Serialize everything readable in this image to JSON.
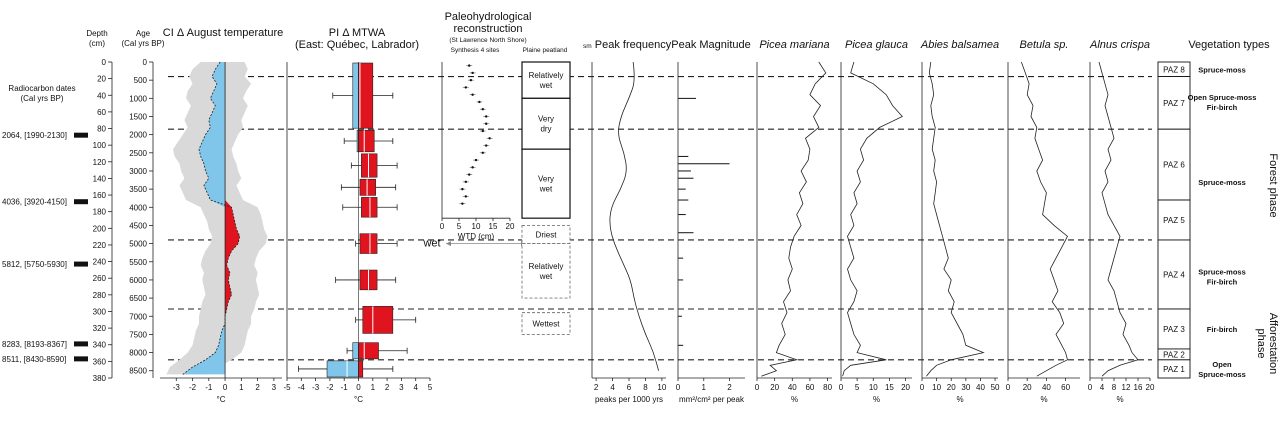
{
  "chart_data": {
    "type": "line",
    "depth_axis": {
      "label": "Depth",
      "unit": "(cm)",
      "ticks": [
        0,
        20,
        40,
        60,
        80,
        100,
        120,
        140,
        160,
        180,
        200,
        220,
        240,
        260,
        280,
        300,
        320,
        340,
        360,
        380
      ]
    },
    "age_axis": {
      "label": "Age",
      "unit": "(Cal yrs BP)",
      "ticks": [
        0,
        500,
        1000,
        1500,
        2000,
        2500,
        3000,
        3500,
        4000,
        4500,
        5000,
        5500,
        6000,
        6500,
        7000,
        7500,
        8000,
        8500
      ]
    },
    "radiocarbon": {
      "title_line1": "Radiocarbon dates",
      "title_line2": "(Cal yrs BP)",
      "dates": [
        {
          "label": "2064, [1990-2130]",
          "depth": 88
        },
        {
          "label": "4036, [3920-4150]",
          "depth": 168
        },
        {
          "label": "5812, [5750-5930]",
          "depth": 243
        },
        {
          "label": "8283, [8193-8367]",
          "depth": 339
        },
        {
          "label": "8511, [8430-8590]",
          "depth": 357
        }
      ]
    },
    "zone_boundaries_age": [
      400,
      1850,
      4900,
      6800,
      8200
    ],
    "ci_temperature": {
      "title": "CI Δ August temperature",
      "xlabel": "°C",
      "xlim": [
        -4,
        3.5
      ],
      "xticks": [
        "-3",
        "-2",
        "-1",
        "0",
        "1",
        "2",
        "3"
      ],
      "age": [
        0,
        200,
        400,
        600,
        800,
        1000,
        1200,
        1400,
        1600,
        1800,
        2000,
        2200,
        2400,
        2600,
        2800,
        3000,
        3200,
        3400,
        3600,
        3800,
        4000,
        4200,
        4400,
        4600,
        4800,
        5000,
        5200,
        5400,
        5600,
        5800,
        6000,
        6200,
        6400,
        6600,
        6800,
        7000,
        7200,
        7400,
        7600,
        7800,
        8000,
        8200,
        8400,
        8600
      ],
      "anomaly": [
        -0.3,
        -0.6,
        -0.8,
        -0.5,
        -0.7,
        -0.9,
        -0.6,
        -0.8,
        -1.0,
        -0.9,
        -1.2,
        -1.4,
        -1.6,
        -1.5,
        -1.3,
        -1.2,
        -1.0,
        -1.3,
        -1.1,
        -0.9,
        0.4,
        0.5,
        0.6,
        0.7,
        0.9,
        0.8,
        0.4,
        0.2,
        0.1,
        0.3,
        0.2,
        0.3,
        0.4,
        0.2,
        0.1,
        0.0,
        0.0,
        -0.2,
        -0.3,
        -0.4,
        -0.6,
        -1.2,
        -2.0,
        -2.6
      ],
      "band_low": [
        -1.5,
        -2.0,
        -2.2,
        -2.0,
        -2.3,
        -2.4,
        -2.1,
        -2.3,
        -2.5,
        -2.3,
        -2.6,
        -2.9,
        -3.2,
        -3.1,
        -2.8,
        -2.7,
        -2.5,
        -2.8,
        -2.6,
        -2.4,
        -1.5,
        -1.3,
        -1.1,
        -1.0,
        -0.8,
        -0.9,
        -1.2,
        -1.4,
        -1.5,
        -1.3,
        -1.4,
        -1.3,
        -1.2,
        -1.4,
        -1.5,
        -1.6,
        -1.6,
        -1.8,
        -1.9,
        -2.0,
        -2.3,
        -2.8,
        -3.4,
        -3.6
      ],
      "band_high": [
        1.2,
        1.4,
        1.2,
        1.6,
        1.3,
        1.1,
        1.4,
        1.2,
        1.0,
        1.1,
        0.8,
        0.6,
        0.4,
        0.5,
        0.7,
        0.8,
        1.0,
        0.7,
        0.9,
        1.1,
        2.0,
        2.2,
        2.3,
        2.4,
        2.6,
        2.5,
        2.1,
        1.9,
        1.8,
        2.0,
        1.9,
        2.0,
        2.1,
        1.9,
        1.8,
        1.6,
        1.6,
        1.4,
        1.3,
        1.2,
        1.0,
        0.4,
        -0.4,
        -1.0
      ]
    },
    "pi_mtwa": {
      "title_line1": "PI Δ MTWA",
      "title_line2": "(East: Québec, Labrador)",
      "xlabel": "°C",
      "xlim": [
        -5,
        5
      ],
      "xticks": [
        "-5",
        "-4",
        "-3",
        "-2",
        "-1",
        "0",
        "1",
        "2",
        "3",
        "4",
        "5"
      ],
      "boxes": [
        {
          "age_top": 0,
          "age_bottom": 1850,
          "whisker_low": -1.8,
          "q1": -0.4,
          "median": 0.1,
          "q3": 1.0,
          "whisker_high": 2.4
        },
        {
          "age_top": 1850,
          "age_bottom": 2500,
          "whisker_low": -1.0,
          "q1": -0.1,
          "median": 0.4,
          "q3": 1.1,
          "whisker_high": 2.4
        },
        {
          "age_top": 2500,
          "age_bottom": 3200,
          "whisker_low": -0.5,
          "q1": 0.2,
          "median": 0.7,
          "q3": 1.3,
          "whisker_high": 2.7
        },
        {
          "age_top": 3200,
          "age_bottom": 3700,
          "whisker_low": -1.2,
          "q1": 0.1,
          "median": 0.6,
          "q3": 1.2,
          "whisker_high": 2.6
        },
        {
          "age_top": 3700,
          "age_bottom": 4300,
          "whisker_low": -1.1,
          "q1": 0.2,
          "median": 0.8,
          "q3": 1.3,
          "whisker_high": 2.7
        },
        {
          "age_top": 4700,
          "age_bottom": 5300,
          "whisker_low": -0.2,
          "q1": 0.1,
          "median": 0.8,
          "q3": 1.3,
          "whisker_high": 2.7
        },
        {
          "age_top": 5700,
          "age_bottom": 6300,
          "whisker_low": -1.6,
          "q1": 0.1,
          "median": 0.7,
          "q3": 1.3,
          "whisker_high": 2.6
        },
        {
          "age_top": 6700,
          "age_bottom": 7500,
          "whisker_low": -0.2,
          "q1": 0.3,
          "median": 1.0,
          "q3": 2.4,
          "whisker_high": 4.0
        },
        {
          "age_top": 7700,
          "age_bottom": 8200,
          "whisker_low": -0.8,
          "q1": -0.4,
          "median": 0.4,
          "q3": 1.4,
          "whisker_high": 3.4
        },
        {
          "age_top": 8200,
          "age_bottom": 8700,
          "whisker_low": -4.2,
          "q1": -2.2,
          "median": -0.8,
          "q3": 0.3,
          "whisker_high": 2.4
        }
      ]
    },
    "paleohydro": {
      "title_line1": "Paleohydrological",
      "title_line2": "reconstruction",
      "subtitle": "(St Lawrence North Shore)",
      "col1_title": "Synthesis 4 sites",
      "col2_title": "Plaine peatland",
      "xlabel": "WTD (cm)",
      "xlim": [
        0,
        20
      ],
      "xticks": [
        "0",
        "5",
        "10",
        "15",
        "20"
      ],
      "wet_label": "wet",
      "dry_label": "dry",
      "synthesis": [
        {
          "age": 100,
          "wtd": 8
        },
        {
          "age": 300,
          "wtd": 9
        },
        {
          "age": 500,
          "wtd": 8.5
        },
        {
          "age": 700,
          "wtd": 7
        },
        {
          "age": 900,
          "wtd": 9
        },
        {
          "age": 1100,
          "wtd": 11
        },
        {
          "age": 1300,
          "wtd": 12
        },
        {
          "age": 1500,
          "wtd": 13
        },
        {
          "age": 1700,
          "wtd": 13
        },
        {
          "age": 1900,
          "wtd": 12
        },
        {
          "age": 2100,
          "wtd": 14
        },
        {
          "age": 2300,
          "wtd": 13
        },
        {
          "age": 2500,
          "wtd": 12
        },
        {
          "age": 2700,
          "wtd": 10
        },
        {
          "age": 2900,
          "wtd": 9
        },
        {
          "age": 3100,
          "wtd": 8
        },
        {
          "age": 3300,
          "wtd": 7
        },
        {
          "age": 3500,
          "wtd": 6
        },
        {
          "age": 3700,
          "wtd": 7
        },
        {
          "age": 3900,
          "wtd": 6
        }
      ],
      "phases": [
        {
          "label": "Relatively wet",
          "age_top": 0,
          "age_bottom": 1000,
          "style": "solid"
        },
        {
          "label": "Very dry",
          "age_top": 1000,
          "age_bottom": 2400,
          "style": "solid"
        },
        {
          "label": "Very wet",
          "age_top": 2400,
          "age_bottom": 4300,
          "style": "solid"
        },
        {
          "label": "Driest",
          "age_top": 4500,
          "age_bottom": 5000,
          "style": "dashed"
        },
        {
          "label": "Relatively wet",
          "age_top": 5000,
          "age_bottom": 6500,
          "style": "dashed"
        },
        {
          "label": "Wettest",
          "age_top": 6900,
          "age_bottom": 7500,
          "style": "dashed"
        }
      ]
    },
    "peak_frequency": {
      "title": "Peak frequency",
      "prefix": "sm",
      "xlabel": "peaks per 1000 yrs",
      "xlim": [
        1.5,
        10.5
      ],
      "xticks": [
        "2",
        "4",
        "6",
        "8",
        "10"
      ],
      "age": [
        0,
        500,
        1000,
        1500,
        2000,
        2500,
        3000,
        3500,
        4000,
        4500,
        5000,
        5500,
        6000,
        6500,
        7000,
        7500,
        8000,
        8500
      ],
      "values": [
        6.5,
        6.8,
        6.0,
        5.0,
        4.6,
        5.4,
        5.8,
        5.0,
        3.8,
        3.6,
        4.2,
        5.2,
        6.2,
        6.6,
        7.2,
        8.0,
        9.0,
        9.6
      ]
    },
    "peak_magnitude": {
      "title": "Peak Magnitude",
      "xlabel": "mm²/cm² per peak",
      "xlim": [
        0,
        2.6
      ],
      "xticks": [
        "0",
        "1",
        "2"
      ],
      "peaks": [
        {
          "age": 1000,
          "value": 0.7
        },
        {
          "age": 2600,
          "value": 0.4
        },
        {
          "age": 2800,
          "value": 2.0
        },
        {
          "age": 3000,
          "value": 0.5
        },
        {
          "age": 3200,
          "value": 0.6
        },
        {
          "age": 3500,
          "value": 0.3
        },
        {
          "age": 3800,
          "value": 0.4
        },
        {
          "age": 4200,
          "value": 0.3
        },
        {
          "age": 4700,
          "value": 0.6
        },
        {
          "age": 5400,
          "value": 0.2
        },
        {
          "age": 6000,
          "value": 0.2
        },
        {
          "age": 7000,
          "value": 0.15
        },
        {
          "age": 7800,
          "value": 0.2
        }
      ]
    },
    "pollen": [
      {
        "name": "Picea mariana",
        "xlabel": "%",
        "xlim": [
          0,
          85
        ],
        "xticks": [
          "0",
          "20",
          "40",
          "60",
          "80"
        ],
        "age": [
          0,
          300,
          600,
          900,
          1200,
          1500,
          1800,
          2100,
          2400,
          2700,
          3000,
          3300,
          3600,
          3900,
          4200,
          4500,
          4800,
          5100,
          5400,
          5700,
          6000,
          6300,
          6600,
          6900,
          7200,
          7500,
          7800,
          8000,
          8200,
          8350,
          8500,
          8650
        ],
        "values": [
          70,
          78,
          66,
          60,
          72,
          64,
          70,
          55,
          60,
          58,
          50,
          56,
          48,
          52,
          45,
          50,
          42,
          38,
          36,
          40,
          35,
          38,
          30,
          34,
          28,
          32,
          25,
          22,
          45,
          15,
          22,
          5
        ]
      },
      {
        "name": "Picea glauca",
        "xlabel": "%",
        "xlim": [
          0,
          22
        ],
        "xticks": [
          "0",
          "5",
          "10",
          "15",
          "20"
        ],
        "age": [
          0,
          300,
          600,
          900,
          1200,
          1500,
          1800,
          2100,
          2400,
          2700,
          3000,
          3300,
          3600,
          3900,
          4200,
          4500,
          4800,
          5100,
          5400,
          5700,
          6000,
          6300,
          6600,
          6900,
          7200,
          7500,
          7800,
          8000,
          8200,
          8350,
          8500,
          8650
        ],
        "values": [
          4,
          3,
          10,
          14,
          16,
          19,
          12,
          8,
          6,
          7,
          5,
          6,
          4,
          5,
          3,
          4,
          2,
          3,
          4,
          2,
          3,
          5,
          4,
          2,
          3,
          4,
          6,
          5,
          14,
          3,
          1,
          0.5
        ]
      },
      {
        "name": "Abies balsamea",
        "xlabel": "%",
        "xlim": [
          0,
          52
        ],
        "xticks": [
          "0",
          "10",
          "20",
          "30",
          "40",
          "50"
        ],
        "age": [
          0,
          300,
          600,
          900,
          1200,
          1500,
          1800,
          2100,
          2400,
          2700,
          3000,
          3300,
          3600,
          3900,
          4200,
          4500,
          4800,
          5100,
          5400,
          5700,
          6000,
          6300,
          6600,
          6900,
          7200,
          7500,
          7800,
          8000,
          8200,
          8350,
          8500,
          8650
        ],
        "values": [
          6,
          5,
          7,
          8,
          6,
          7,
          9,
          8,
          7,
          9,
          8,
          10,
          9,
          8,
          10,
          12,
          14,
          16,
          18,
          15,
          20,
          18,
          22,
          20,
          24,
          28,
          30,
          42,
          20,
          10,
          6,
          3
        ]
      },
      {
        "name": "Betula sp.",
        "xlabel": "%",
        "xlim": [
          0,
          75
        ],
        "xticks": [
          "0",
          "20",
          "40",
          "60"
        ],
        "age": [
          0,
          300,
          600,
          900,
          1200,
          1500,
          1800,
          2100,
          2400,
          2700,
          3000,
          3300,
          3600,
          3900,
          4200,
          4500,
          4800,
          5100,
          5400,
          5700,
          6000,
          6300,
          6600,
          6900,
          7200,
          7500,
          7800,
          8000,
          8200,
          8350,
          8500,
          8650
        ],
        "values": [
          14,
          18,
          22,
          20,
          26,
          24,
          30,
          28,
          32,
          36,
          30,
          34,
          40,
          38,
          36,
          48,
          62,
          56,
          50,
          44,
          48,
          52,
          46,
          54,
          58,
          50,
          56,
          60,
          62,
          50,
          40,
          30
        ]
      },
      {
        "name": "Alnus crispa",
        "xlabel": "%",
        "xlim": [
          0,
          20
        ],
        "xticks": [
          "0",
          "4",
          "8",
          "12",
          "16",
          "20"
        ],
        "age": [
          0,
          300,
          600,
          900,
          1200,
          1500,
          1800,
          2100,
          2400,
          2700,
          3000,
          3300,
          3600,
          3900,
          4200,
          4500,
          4800,
          5100,
          5400,
          5700,
          6000,
          6300,
          6600,
          6900,
          7200,
          7500,
          7800,
          8000,
          8200,
          8350,
          8500,
          8650
        ],
        "values": [
          3,
          4,
          5,
          6,
          5,
          6,
          7,
          8,
          6,
          7,
          5,
          6,
          4,
          5,
          6,
          8,
          10,
          9,
          8,
          7,
          6,
          8,
          9,
          10,
          12,
          11,
          13,
          14,
          16,
          10,
          6,
          4
        ]
      }
    ],
    "paz": [
      {
        "label": "PAZ 8",
        "age_top": 0,
        "age_bottom": 400
      },
      {
        "label": "PAZ 7",
        "age_top": 400,
        "age_bottom": 1850
      },
      {
        "label": "PAZ 6",
        "age_top": 1850,
        "age_bottom": 3800
      },
      {
        "label": "PAZ 5",
        "age_top": 3800,
        "age_bottom": 4900
      },
      {
        "label": "PAZ 4",
        "age_top": 4900,
        "age_bottom": 6800
      },
      {
        "label": "PAZ 3",
        "age_top": 6800,
        "age_bottom": 7900
      },
      {
        "label": "PAZ 2",
        "age_top": 7900,
        "age_bottom": 8200
      },
      {
        "label": "PAZ 1",
        "age_top": 8200,
        "age_bottom": 8700
      }
    ],
    "vegetation": {
      "title": "Vegetation types",
      "types": [
        {
          "lines": [
            "Spruce-moss"
          ],
          "age": 200
        },
        {
          "lines": [
            "Open Spruce-moss",
            "Fir-birch"
          ],
          "age": 1100
        },
        {
          "lines": [
            "Spruce-moss"
          ],
          "age": 3300
        },
        {
          "lines": [
            "Spruce-moss",
            "Fir-birch"
          ],
          "age": 5900
        },
        {
          "lines": [
            "Fir-birch"
          ],
          "age": 7350
        },
        {
          "lines": [
            "Open",
            "Spruce-moss"
          ],
          "age": 8450
        }
      ],
      "phases": [
        {
          "label": "Forest phase",
          "age_top": 0,
          "age_bottom": 6800
        },
        {
          "label": "Afforestation",
          "label2": "phase",
          "age_top": 6800,
          "age_bottom": 8700
        }
      ]
    }
  }
}
